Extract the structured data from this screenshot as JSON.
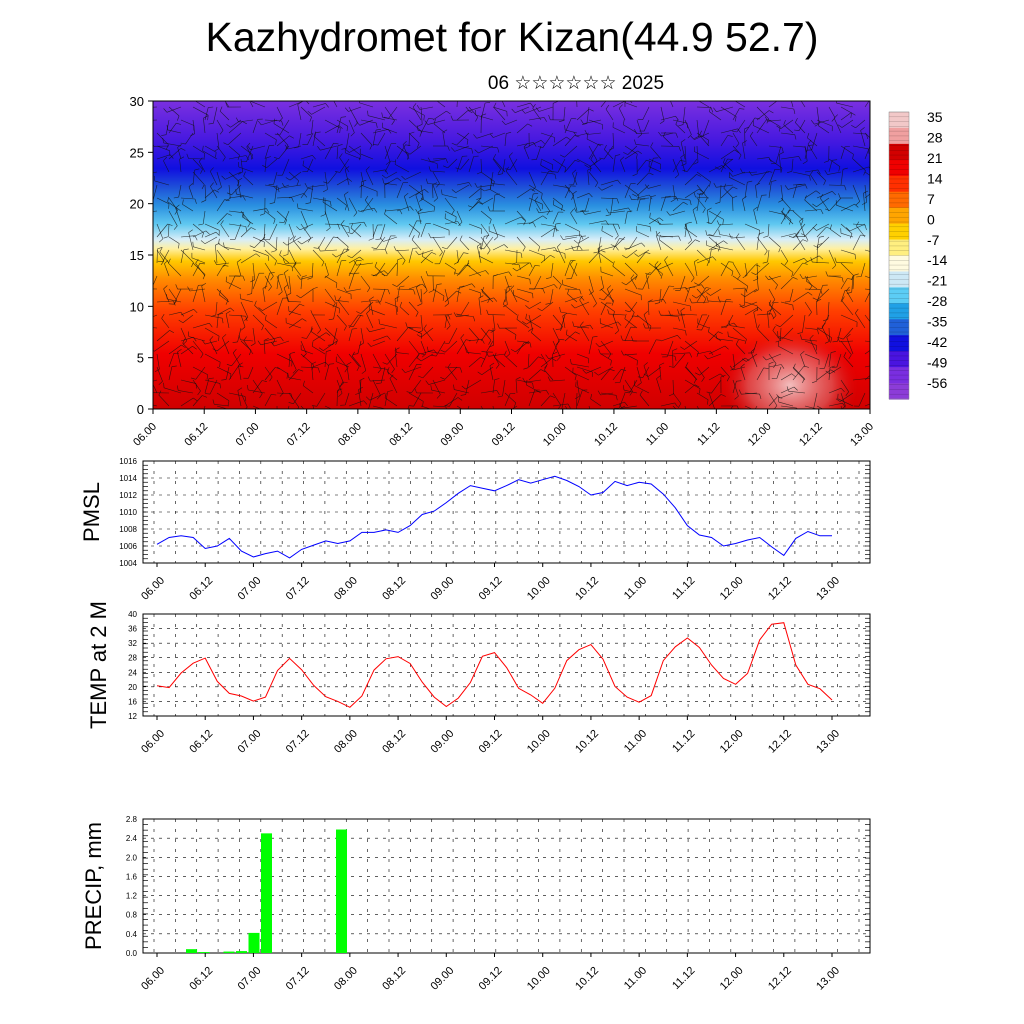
{
  "title": "Kazhydromet for Kizan(44.9 52.7)",
  "subtitle": "06 ☆☆☆☆☆☆ 2025",
  "time_labels": [
    "06.00",
    "06.12",
    "07.00",
    "07.12",
    "08.00",
    "08.12",
    "09.00",
    "09.12",
    "10.00",
    "10.12",
    "11.00",
    "11.12",
    "12.00",
    "12.12",
    "13.00"
  ],
  "colors": {
    "pmsl_line": "#0000ff",
    "temp_line": "#ff0000",
    "precip_bar": "#00ff00"
  },
  "chart_data": [
    {
      "type": "heatmap",
      "title": "",
      "xlabel": "",
      "ylabel": "",
      "ylim": [
        0,
        30
      ],
      "y_ticks": [
        "0",
        "5",
        "10",
        "15",
        "20",
        "25",
        "30"
      ],
      "colorbar_labels": [
        "35",
        "28",
        "21",
        "14",
        "7",
        "0",
        "-7",
        "-14",
        "-21",
        "-28",
        "-35",
        "-42",
        "-49",
        "-56"
      ],
      "colormap": [
        "#f2c8c8",
        "#f0a0a0",
        "#d20000",
        "#f00000",
        "#ff3000",
        "#ff6a00",
        "#ffa500",
        "#ffd000",
        "#ffef80",
        "#fffbe0",
        "#cde8f5",
        "#5ccdf5",
        "#20a0e6",
        "#2060d8",
        "#1010e0",
        "#4a14e0",
        "#7a2ee0",
        "#8c3cd8"
      ],
      "overlay": "wind barbs"
    },
    {
      "type": "line",
      "ylabel": "PMSL",
      "ylim": [
        1004,
        1016
      ],
      "y_ticks": [
        "1004",
        "1006",
        "1008",
        "1010",
        "1012",
        "1014",
        "1016"
      ],
      "series": [
        {
          "values": [
            1006.2,
            1007.0,
            1007.2,
            1007.0,
            1005.7,
            1006.0,
            1006.9,
            1005.4,
            1004.7,
            1005.1,
            1005.4,
            1004.6,
            1005.6,
            1006.1,
            1006.6,
            1006.3,
            1006.6,
            1007.6,
            1007.6,
            1007.9,
            1007.6,
            1008.4,
            1009.7,
            1010.1,
            1011.1,
            1012.2,
            1013.1,
            1012.8,
            1012.5,
            1013.1,
            1013.8,
            1013.4,
            1013.8,
            1014.2,
            1013.7,
            1013.0,
            1012.0,
            1012.3,
            1013.6,
            1013.1,
            1013.5,
            1013.3,
            1012.1,
            1010.5,
            1008.4,
            1007.3,
            1007.0,
            1006.0,
            1006.3,
            1006.7,
            1007.0,
            1005.9,
            1004.9,
            1006.9,
            1007.7,
            1007.2,
            1007.2
          ]
        }
      ]
    },
    {
      "type": "line",
      "ylabel": "TEMP at 2 M",
      "ylim": [
        12,
        40
      ],
      "y_ticks": [
        "12",
        "16",
        "20",
        "24",
        "28",
        "32",
        "36",
        "40"
      ],
      "series": [
        {
          "values": [
            20.3,
            19.8,
            23.8,
            26.5,
            27.9,
            21.5,
            18.2,
            17.5,
            16.1,
            17.2,
            24.5,
            27.8,
            24.7,
            20.4,
            17.3,
            16.0,
            14.4,
            17.5,
            24.6,
            27.7,
            28.3,
            26.4,
            21.3,
            17.2,
            14.6,
            16.9,
            21.2,
            28.4,
            29.4,
            25.3,
            19.6,
            17.8,
            15.5,
            19.6,
            27.2,
            30.2,
            31.6,
            27.6,
            20.1,
            17.2,
            15.8,
            17.6,
            27.2,
            31.0,
            33.4,
            30.8,
            26.0,
            22.3,
            20.7,
            23.7,
            32.9,
            37.2,
            37.6,
            26.0,
            20.7,
            19.5,
            16.4
          ]
        }
      ]
    },
    {
      "type": "bar",
      "ylabel": "PRECIP, mm",
      "ylim": [
        0,
        2.8
      ],
      "y_ticks": [
        "0.0",
        "0.4",
        "0.8",
        "1.2",
        "1.6",
        "2.0",
        "2.4",
        "2.8"
      ],
      "values": [
        0,
        0,
        0,
        0.08,
        0.02,
        0,
        0.03,
        0.04,
        0.42,
        2.5,
        0,
        0,
        0,
        0,
        0,
        2.58,
        0,
        0,
        0,
        0,
        0,
        0,
        0,
        0,
        0,
        0,
        0,
        0,
        0,
        0,
        0,
        0,
        0,
        0,
        0,
        0,
        0,
        0,
        0,
        0,
        0,
        0,
        0,
        0,
        0,
        0,
        0,
        0,
        0,
        0,
        0,
        0,
        0,
        0,
        0,
        0
      ]
    }
  ]
}
